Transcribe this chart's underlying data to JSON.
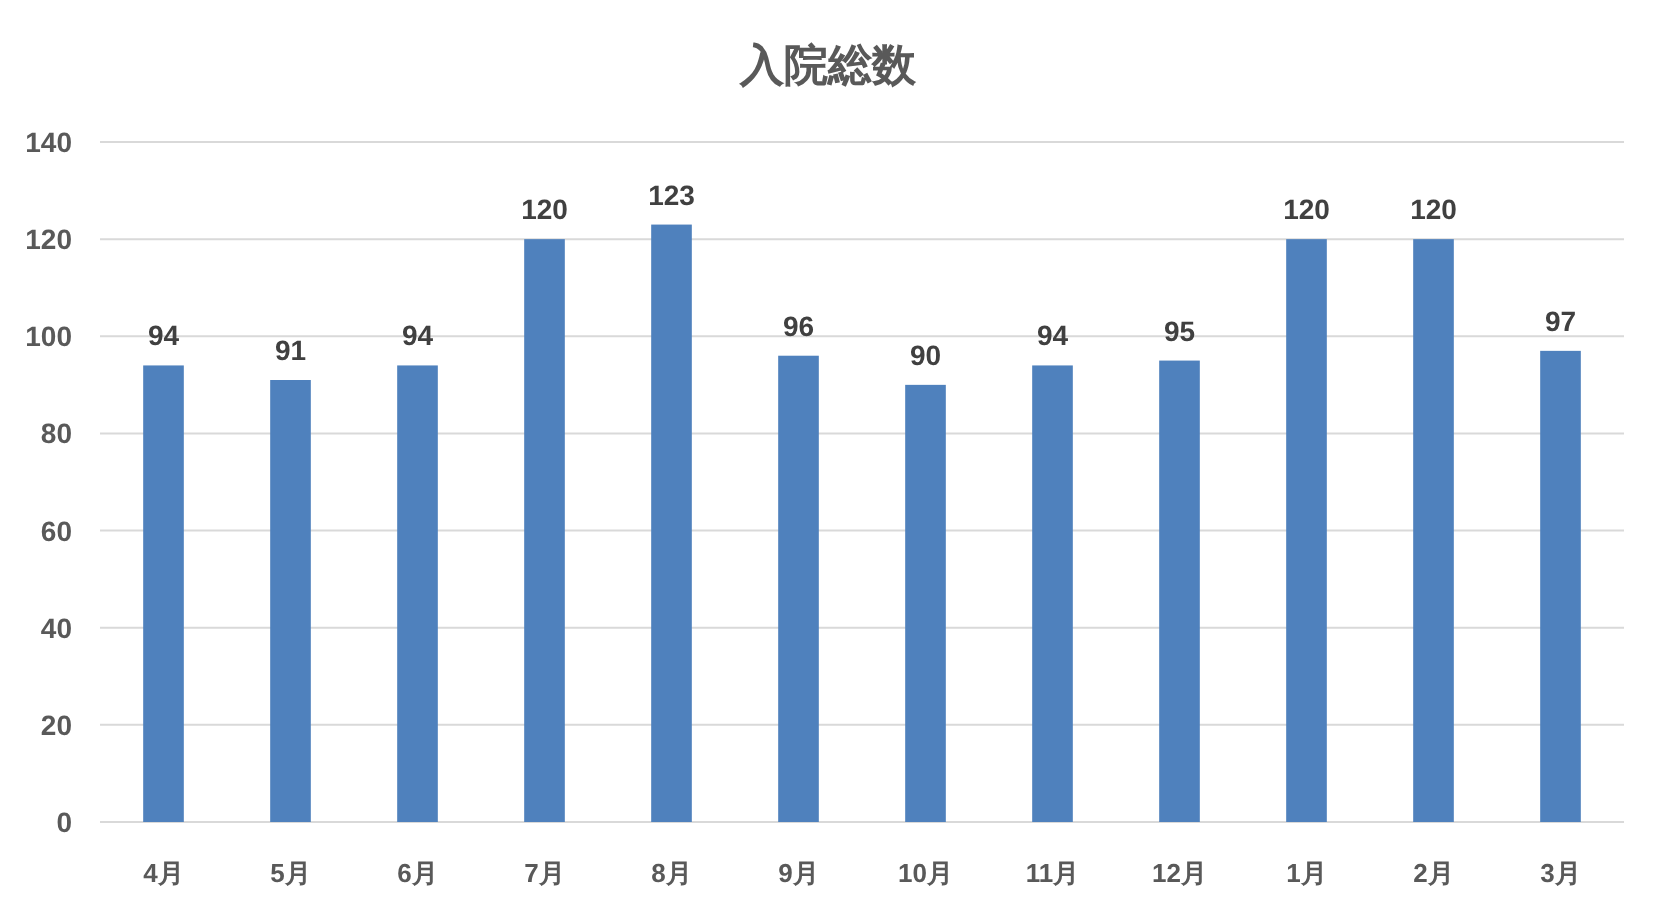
{
  "chart_data": {
    "type": "bar",
    "title": "入院総数",
    "categories": [
      "4月",
      "5月",
      "6月",
      "7月",
      "8月",
      "9月",
      "10月",
      "11月",
      "12月",
      "1月",
      "2月",
      "3月"
    ],
    "values": [
      94,
      91,
      94,
      120,
      123,
      96,
      90,
      94,
      95,
      120,
      120,
      97
    ],
    "color": "#4f81bd",
    "ylim": [
      0,
      140
    ],
    "yticks": [
      0,
      20,
      40,
      60,
      80,
      100,
      120,
      140
    ],
    "grid": "y",
    "data_labels": true
  }
}
